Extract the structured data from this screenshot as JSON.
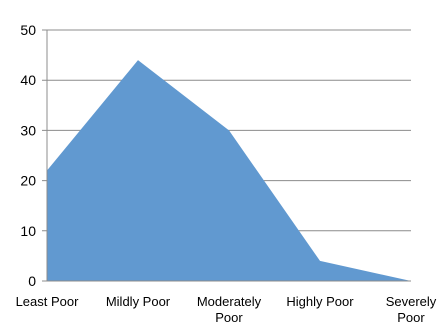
{
  "chart_data": {
    "type": "area",
    "title": "",
    "xlabel": "",
    "ylabel": "",
    "categories": [
      "Least Poor",
      "Mildly Poor",
      "Moderately Poor",
      "Highly Poor",
      "Severely Poor"
    ],
    "category_lines": [
      [
        "Least Poor"
      ],
      [
        "Mildly Poor"
      ],
      [
        "Moderately",
        "Poor"
      ],
      [
        "Highly Poor"
      ],
      [
        "Severely",
        "Poor"
      ]
    ],
    "values": [
      22,
      44,
      30,
      4,
      0
    ],
    "ylim": [
      0,
      50
    ],
    "yticks": [
      0,
      10,
      20,
      30,
      40,
      50
    ],
    "grid": true,
    "legend": "none",
    "colors": {
      "fill": "#6199d0",
      "grid": "#8c8c8c",
      "axis": "#8c8c8c",
      "text": "#000000"
    }
  }
}
